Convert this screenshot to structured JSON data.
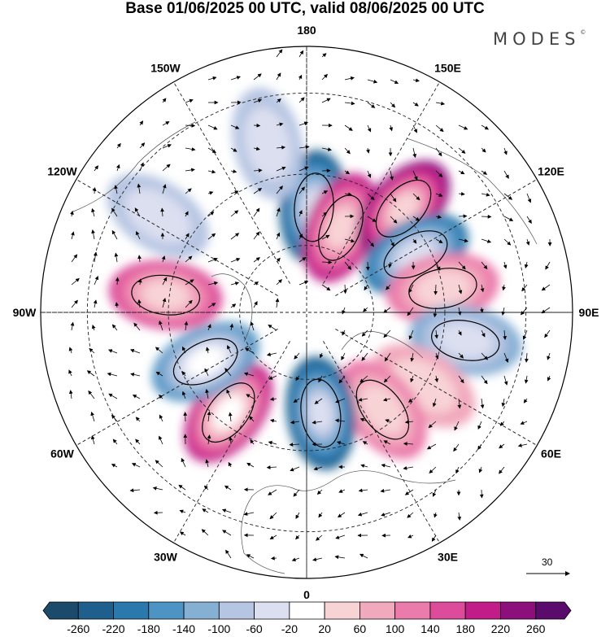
{
  "title": "Base 01/06/2025 00 UTC, valid 08/06/2025 00 UTC",
  "brand": {
    "name": "MODES",
    "mark": "©"
  },
  "longitude_labels": [
    "180",
    "150E",
    "120E",
    "90E",
    "60E",
    "30E",
    "0",
    "30W",
    "60W",
    "90W",
    "120W",
    "150W"
  ],
  "wind_reference": {
    "value": "30"
  },
  "colorbar": {
    "ticks": [
      "-260",
      "-220",
      "-180",
      "-140",
      "-100",
      "-60",
      "-20",
      "20",
      "60",
      "100",
      "140",
      "180",
      "220",
      "260"
    ],
    "colors": [
      "#1b4a6b",
      "#1f5f8e",
      "#2b78ad",
      "#4d93c3",
      "#86afd4",
      "#b6c5e2",
      "#dcdff0",
      "#ffffff",
      "#f8d3d6",
      "#f1a9bd",
      "#eb7bab",
      "#dc4c9a",
      "#c11c88",
      "#8c0f7c",
      "#5a0b6b"
    ]
  },
  "anomaly_centers": [
    {
      "lon": 176,
      "colat": 31,
      "value": -240
    },
    {
      "lon": 158,
      "colat": 27,
      "value": 200
    },
    {
      "lon": 137,
      "colat": 41,
      "value": 230
    },
    {
      "lon": 118,
      "colat": 36,
      "value": -200
    },
    {
      "lon": 100,
      "colat": 40,
      "value": 110
    },
    {
      "lon": 80,
      "colat": 46,
      "value": -120
    },
    {
      "lon": 58,
      "colat": 40,
      "value": 60
    },
    {
      "lon": 38,
      "colat": 36,
      "value": 120
    },
    {
      "lon": 8,
      "colat": 30,
      "value": -230
    },
    {
      "lon": 322,
      "colat": 37,
      "value": 210
    },
    {
      "lon": 296,
      "colat": 33,
      "value": -170
    },
    {
      "lon": 263,
      "colat": 41,
      "value": 140
    },
    {
      "lon": 237,
      "colat": 50,
      "value": -80
    },
    {
      "lon": 193,
      "colat": 49,
      "value": -70
    }
  ],
  "map": {
    "projection": "north-polar-stereographic",
    "pole_center_longitude_bottom": 0
  }
}
